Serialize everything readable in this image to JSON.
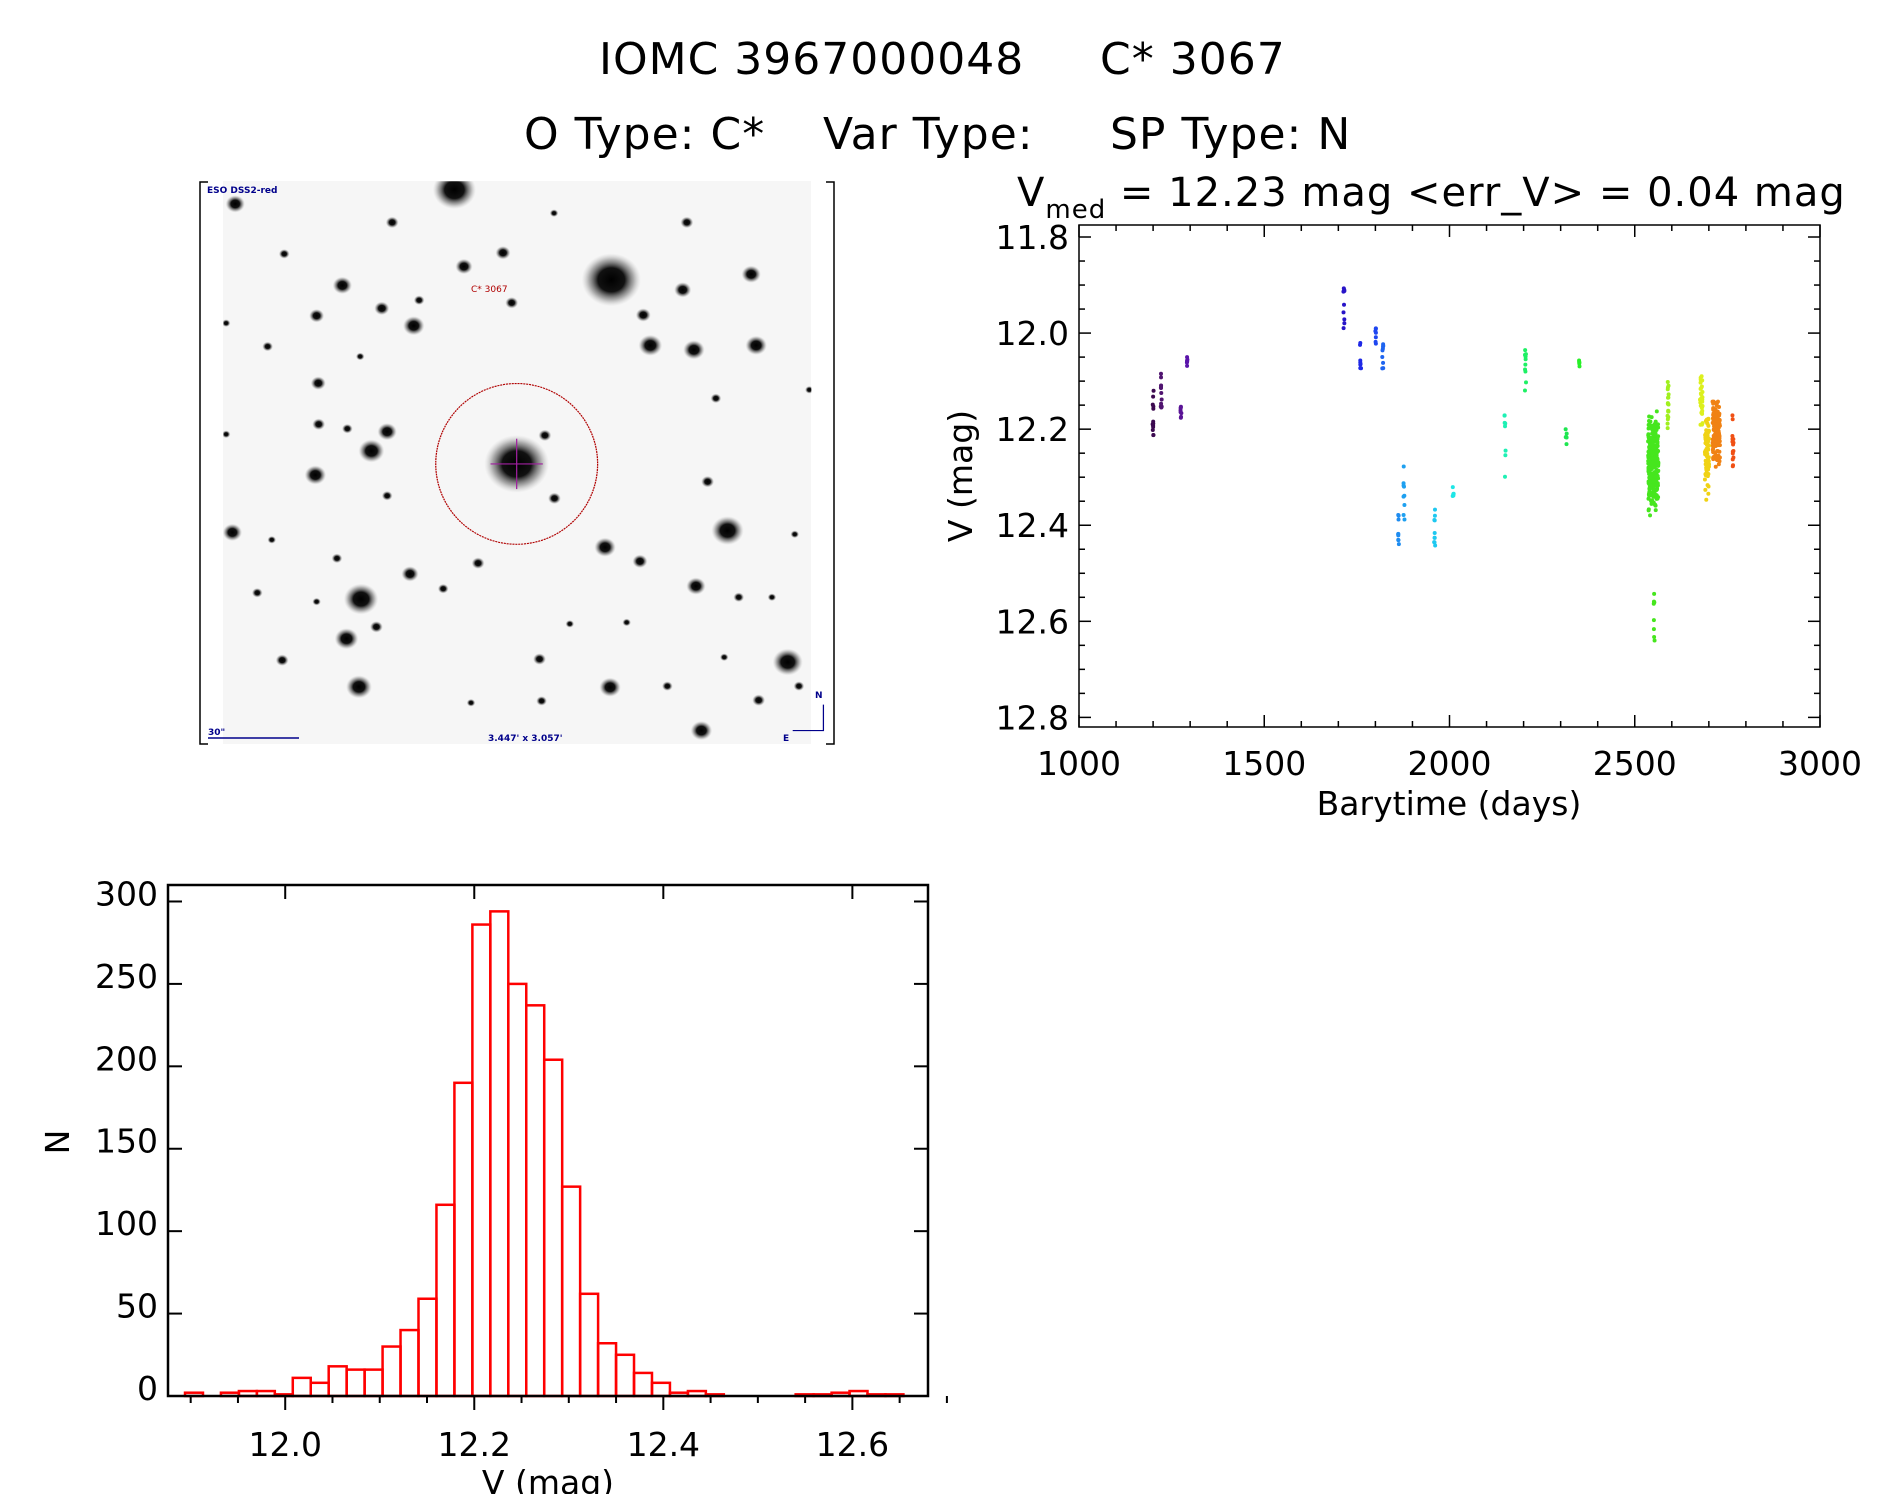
{
  "header": {
    "object_id": "IOMC 3967000048",
    "object_name": "C* 3067",
    "otype": "O Type: C*",
    "vartype": "Var Type:",
    "sptype": "SP Type: N"
  },
  "image": {
    "survey_label": "ESO DSS2-red",
    "target_label": "C* 3067",
    "scale_label": "30\"",
    "fov_label": "3.447' x 3.057'",
    "north_label": "N",
    "east_label": "E"
  },
  "colors": {
    "hist": "#ff0000",
    "circle": "#b00000",
    "crosshair": "#a020a0",
    "annotation": "#00008b"
  },
  "chart_data": [
    {
      "type": "scatter",
      "title_main": "V",
      "title_sub": "med",
      "title_rest": " = 12.23 mag <err_V> = 0.04 mag",
      "xlabel": "Barytime (days)",
      "ylabel": "V (mag)",
      "xlim": [
        1000,
        3000
      ],
      "ylim": [
        11.775,
        12.82
      ],
      "y_inverted": true,
      "xticks": [
        "1000",
        "1500",
        "2000",
        "2500",
        "3000"
      ],
      "yticks": [
        "11.8",
        "12.0",
        "12.2",
        "12.4",
        "12.6",
        "12.8"
      ],
      "clusters": [
        {
          "x": 1200,
          "y": [
            12.12,
            12.22
          ],
          "n": 14,
          "color": "#3c0a50"
        },
        {
          "x": 1222,
          "y": [
            12.08,
            12.16
          ],
          "n": 12,
          "color": "#501470"
        },
        {
          "x": 1275,
          "y": [
            12.14,
            12.18
          ],
          "n": 8,
          "color": "#5a1496"
        },
        {
          "x": 1292,
          "y": [
            12.04,
            12.07
          ],
          "n": 6,
          "color": "#5a14aa"
        },
        {
          "x": 1715,
          "y": [
            11.9,
            11.99
          ],
          "n": 9,
          "color": "#2814c8"
        },
        {
          "x": 1760,
          "y": [
            12.02,
            12.08
          ],
          "n": 8,
          "color": "#1e28e6"
        },
        {
          "x": 1800,
          "y": [
            11.99,
            12.04
          ],
          "n": 7,
          "color": "#1e46f0"
        },
        {
          "x": 1820,
          "y": [
            12.02,
            12.08
          ],
          "n": 9,
          "color": "#1e64f0"
        },
        {
          "x": 1862,
          "y": [
            12.36,
            12.44
          ],
          "n": 9,
          "color": "#1e8cf0"
        },
        {
          "x": 1877,
          "y": [
            12.25,
            12.39
          ],
          "n": 9,
          "color": "#1ea0f0"
        },
        {
          "x": 1960,
          "y": [
            12.36,
            12.46
          ],
          "n": 10,
          "color": "#1ec8f0"
        },
        {
          "x": 2010,
          "y": [
            12.32,
            12.34
          ],
          "n": 5,
          "color": "#1ee6e6"
        },
        {
          "x": 2150,
          "y": [
            12.16,
            12.3
          ],
          "n": 8,
          "color": "#1ef0b4"
        },
        {
          "x": 2205,
          "y": [
            12.03,
            12.12
          ],
          "n": 10,
          "color": "#1ef064"
        },
        {
          "x": 2315,
          "y": [
            12.2,
            12.24
          ],
          "n": 6,
          "color": "#1ee650"
        },
        {
          "x": 2350,
          "y": [
            12.05,
            12.07
          ],
          "n": 5,
          "color": "#28f028"
        },
        {
          "x": 2550,
          "y": [
            12.13,
            12.4
          ],
          "n": 260,
          "spread": 14,
          "color": "#46e61e"
        },
        {
          "x": 2552,
          "y": [
            12.54,
            12.64
          ],
          "n": 8,
          "color": "#46e61e"
        },
        {
          "x": 2590,
          "y": [
            12.1,
            12.2
          ],
          "n": 18,
          "color": "#a0f01e"
        },
        {
          "x": 2680,
          "y": [
            12.08,
            12.2
          ],
          "n": 30,
          "spread": 4,
          "color": "#dcf01e"
        },
        {
          "x": 2695,
          "y": [
            12.12,
            12.36
          ],
          "n": 90,
          "spread": 6,
          "color": "#f0d214"
        },
        {
          "x": 2720,
          "y": [
            12.11,
            12.3
          ],
          "n": 160,
          "spread": 10,
          "color": "#f08214"
        },
        {
          "x": 2765,
          "y": [
            12.17,
            12.31
          ],
          "n": 16,
          "color": "#f05014"
        }
      ]
    },
    {
      "type": "bar",
      "subtype": "histogram",
      "xlabel": "V (mag)",
      "ylabel": "N",
      "xlim": [
        11.876,
        12.68
      ],
      "ylim": [
        0,
        310
      ],
      "xticks": [
        "12.0",
        "12.2",
        "12.4",
        "12.6"
      ],
      "yticks": [
        "0",
        "50",
        "100",
        "150",
        "200",
        "250",
        "300"
      ],
      "bin_start": 11.894,
      "bin_width": 0.019,
      "counts": [
        2,
        0,
        2,
        3,
        3,
        1,
        11,
        8,
        18,
        16,
        16,
        30,
        40,
        59,
        116,
        190,
        286,
        294,
        250,
        237,
        204,
        127,
        62,
        32,
        25,
        14,
        8,
        2,
        3,
        1,
        0,
        0,
        0,
        0,
        1,
        1,
        2,
        3,
        1,
        1
      ]
    }
  ]
}
